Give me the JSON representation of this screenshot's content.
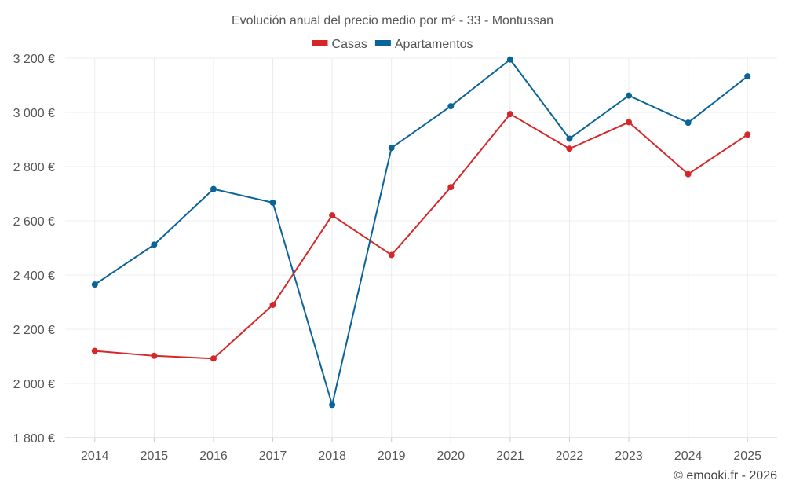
{
  "chart_data": {
    "type": "line",
    "title": "Evolución anual del precio medio por m² - 33 - Montussan",
    "categories": [
      "2014",
      "2015",
      "2016",
      "2017",
      "2018",
      "2019",
      "2020",
      "2021",
      "2022",
      "2023",
      "2024",
      "2025"
    ],
    "series": [
      {
        "name": "Casas",
        "color": "#d62728",
        "values": [
          2120,
          2102,
          2092,
          2290,
          2620,
          2474,
          2724,
          2994,
          2866,
          2964,
          2772,
          2918
        ]
      },
      {
        "name": "Apartamentos",
        "color": "#0a6399",
        "values": [
          2365,
          2512,
          2717,
          2667,
          1921,
          2869,
          3023,
          3195,
          2903,
          3062,
          2962,
          3133
        ]
      }
    ],
    "ylim": [
      1800,
      3200
    ],
    "yticks": [
      1800,
      2000,
      2200,
      2400,
      2600,
      2800,
      3000,
      3200
    ],
    "ytick_labels": [
      "1 800 €",
      "2 000 €",
      "2 200 €",
      "2 400 €",
      "2 600 €",
      "2 800 €",
      "3 000 €",
      "3 200 €"
    ],
    "xlabel": "",
    "ylabel": "",
    "grid": true,
    "legend_position": "top-center"
  },
  "credit": "© emooki.fr - 2026",
  "colors": {
    "grid": "#ececec",
    "axis": "#cccccc",
    "text": "#555555"
  }
}
